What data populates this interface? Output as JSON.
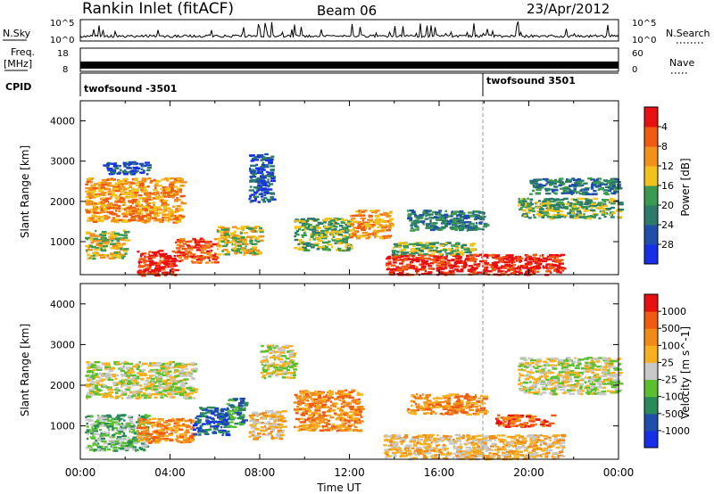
{
  "header": {
    "station": "Rankin Inlet (fitACF)",
    "beam": "Beam 06",
    "date": "23/Apr/2012"
  },
  "strips": {
    "nsky": {
      "label": "N.Sky",
      "tick_top": "10^5",
      "tick_bottom": "10^0"
    },
    "nsearch": {
      "label": "N.Search"
    },
    "freq": {
      "label": "Freq.",
      "unit": "[MHz]",
      "tick_top": "18",
      "tick_bottom": "8"
    },
    "nave": {
      "label": "Nave",
      "tick_top": "60",
      "tick_bottom": "0"
    },
    "cpid": {
      "label": "CPID",
      "segments": [
        {
          "name": "twofsound -3501",
          "start_hour": 0
        },
        {
          "name": "twofsound 3501",
          "start_hour": 18
        }
      ]
    }
  },
  "chart_data": [
    {
      "type": "heatmap",
      "name": "power",
      "ylabel": "Slant Range [km]",
      "xlabel": "",
      "ylim": [
        180,
        4500
      ],
      "yticks": [
        1000,
        2000,
        3000,
        4000
      ],
      "xlim_hours": [
        0,
        24
      ],
      "colorbar": {
        "label": "Power [dB]",
        "ticks": [
          "4",
          "8",
          "12",
          "16",
          "20",
          "24",
          "28"
        ],
        "colors": [
          "#1530e8",
          "#1f4fa8",
          "#2b7a6a",
          "#3a9a50",
          "#f2c21c",
          "#f2901c",
          "#f05a12",
          "#e81010"
        ]
      },
      "regions": [
        {
          "t0": 0.2,
          "t1": 4.5,
          "r0": 1500,
          "r1": 2600,
          "level": 5
        },
        {
          "t0": 0.2,
          "t1": 2.0,
          "r0": 600,
          "r1": 1300,
          "level": 4
        },
        {
          "t0": 2.5,
          "t1": 4.2,
          "r0": 180,
          "r1": 800,
          "level": 7
        },
        {
          "t0": 4.2,
          "t1": 6.0,
          "r0": 500,
          "r1": 1100,
          "level": 6
        },
        {
          "t0": 6.0,
          "t1": 8.0,
          "r0": 700,
          "r1": 1400,
          "level": 4
        },
        {
          "t0": 9.5,
          "t1": 12.0,
          "r0": 800,
          "r1": 1600,
          "level": 3
        },
        {
          "t0": 12.0,
          "t1": 13.8,
          "r0": 1100,
          "r1": 1800,
          "level": 5
        },
        {
          "t0": 13.6,
          "t1": 21.5,
          "r0": 200,
          "r1": 700,
          "level": 7
        },
        {
          "t0": 13.8,
          "t1": 17.5,
          "r0": 700,
          "r1": 1000,
          "level": 3
        },
        {
          "t0": 14.5,
          "t1": 18.0,
          "r0": 1300,
          "r1": 1800,
          "level": 2
        },
        {
          "t0": 19.5,
          "t1": 24.0,
          "r0": 1600,
          "r1": 2100,
          "level": 3
        },
        {
          "t0": 20.0,
          "t1": 24.0,
          "r0": 2200,
          "r1": 2600,
          "level": 2
        },
        {
          "t0": 7.5,
          "t1": 8.5,
          "r0": 2000,
          "r1": 3200,
          "level": 1
        },
        {
          "t0": 1.0,
          "t1": 3.0,
          "r0": 2700,
          "r1": 3000,
          "level": 1
        }
      ]
    },
    {
      "type": "heatmap",
      "name": "velocity",
      "ylabel": "Slant Range [km]",
      "xlabel": "Time UT",
      "ylim": [
        180,
        4500
      ],
      "yticks": [
        1000,
        2000,
        3000,
        4000
      ],
      "xlim_hours": [
        0,
        24
      ],
      "xticks": [
        "00:00",
        "04:00",
        "08:00",
        "12:00",
        "16:00",
        "20:00",
        "00:00"
      ],
      "colorbar": {
        "label": "Velocity [m s^-1]",
        "ticks": [
          "1000",
          "500",
          "100",
          "25",
          "-25",
          "-100",
          "-500",
          "-1000"
        ],
        "colors": [
          "#1530e8",
          "#1f4fa8",
          "#2b8a5a",
          "#5ac030",
          "#c8c8c8",
          "#f7b020",
          "#f08a18",
          "#f05a12",
          "#e81010"
        ]
      },
      "regions": [
        {
          "t0": 0.2,
          "t1": 5.0,
          "r0": 1700,
          "r1": 2600,
          "level": 4
        },
        {
          "t0": 0.2,
          "t1": 3.0,
          "r0": 400,
          "r1": 1300,
          "level": 3
        },
        {
          "t0": 2.5,
          "t1": 5.0,
          "r0": 600,
          "r1": 1200,
          "level": 6
        },
        {
          "t0": 5.0,
          "t1": 6.5,
          "r0": 800,
          "r1": 1500,
          "level": 1
        },
        {
          "t0": 6.5,
          "t1": 7.3,
          "r0": 1000,
          "r1": 1700,
          "level": 2
        },
        {
          "t0": 7.5,
          "t1": 9.0,
          "r0": 700,
          "r1": 1400,
          "level": 5
        },
        {
          "t0": 9.5,
          "t1": 12.5,
          "r0": 900,
          "r1": 1900,
          "level": 6
        },
        {
          "t0": 13.5,
          "t1": 21.5,
          "r0": 200,
          "r1": 800,
          "level": 5
        },
        {
          "t0": 14.5,
          "t1": 18.0,
          "r0": 1300,
          "r1": 1800,
          "level": 6
        },
        {
          "t0": 18.5,
          "t1": 21.0,
          "r0": 1000,
          "r1": 1300,
          "level": 7
        },
        {
          "t0": 19.5,
          "t1": 24.0,
          "r0": 1800,
          "r1": 2700,
          "level": 4
        },
        {
          "t0": 8.0,
          "t1": 9.5,
          "r0": 2200,
          "r1": 3000,
          "level": 4
        }
      ]
    }
  ]
}
